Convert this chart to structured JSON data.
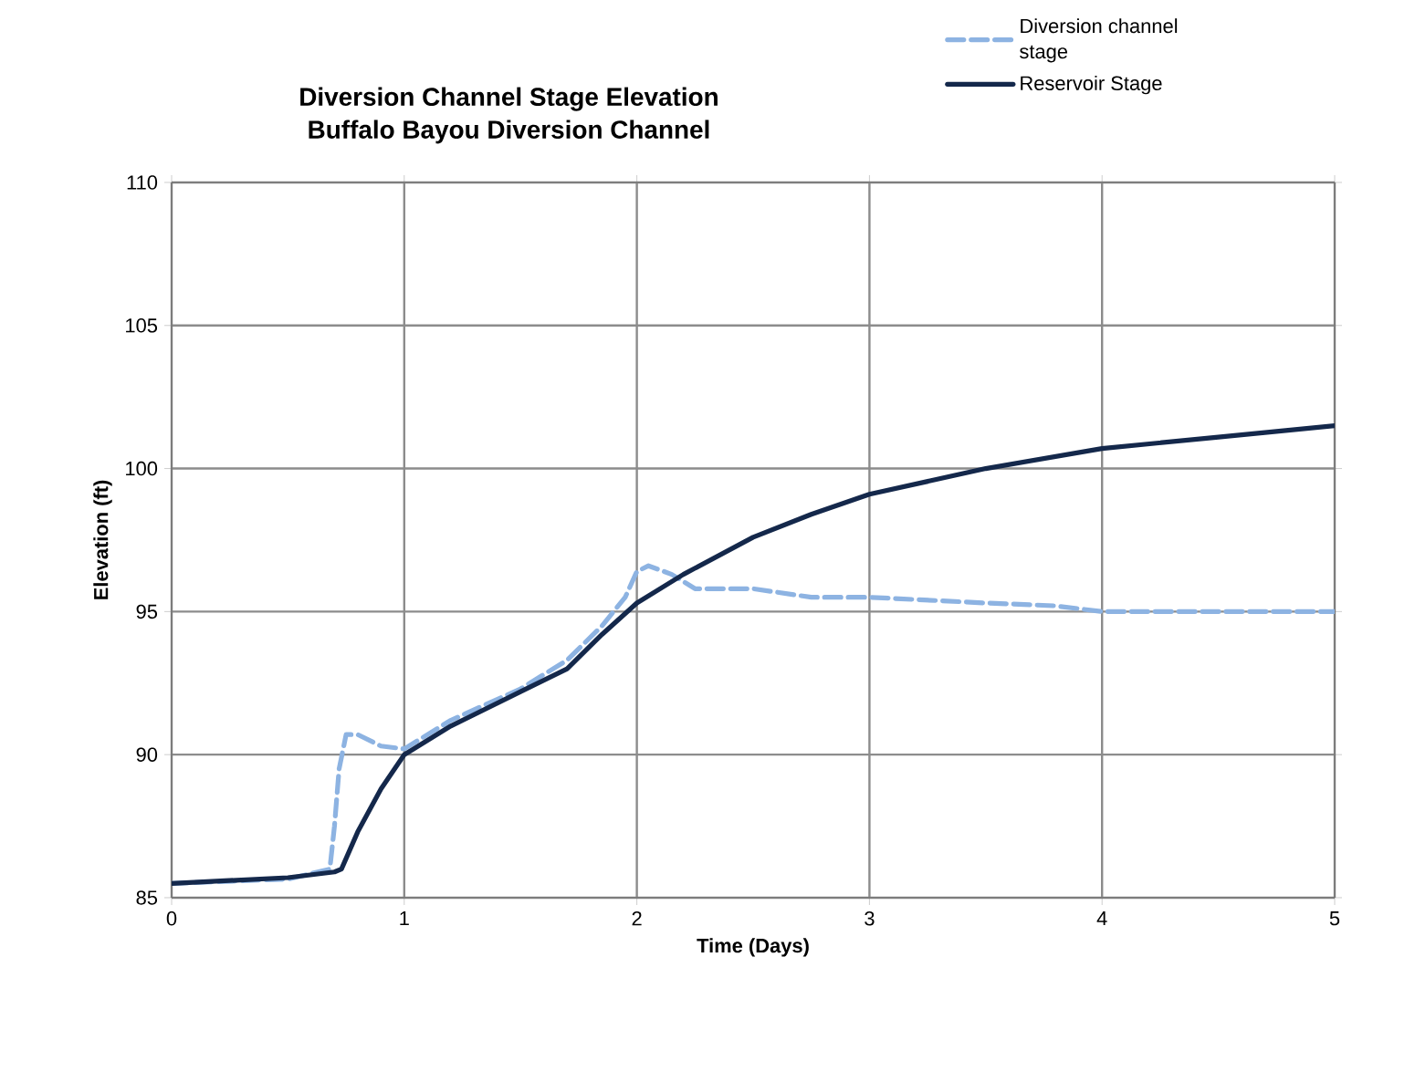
{
  "chart_data": {
    "type": "line",
    "title": "Diversion Channel Stage Elevation",
    "subtitle": "Buffalo Bayou Diversion Channel",
    "xlabel": "Time (Days)",
    "ylabel": "Elevation (ft)",
    "xlim": [
      0,
      5
    ],
    "xticks": [
      0,
      1,
      2,
      3,
      4,
      5
    ],
    "ylim": [
      85,
      110
    ],
    "yticks": [
      85,
      90,
      95,
      100,
      105,
      110
    ],
    "grid": true,
    "legend": "top right",
    "series": [
      {
        "name": "Diversion channel stage",
        "color": "#8db3e2",
        "line_style": "dashed",
        "x": [
          0,
          0.5,
          0.68,
          0.7,
          0.72,
          0.75,
          0.8,
          0.9,
          1.0,
          1.2,
          1.5,
          1.7,
          1.85,
          1.95,
          2.0,
          2.05,
          2.15,
          2.25,
          2.5,
          2.75,
          3.0,
          3.5,
          3.8,
          4.0,
          4.5,
          5.0
        ],
        "values": [
          85.5,
          85.65,
          86.0,
          87.5,
          89.5,
          90.7,
          90.7,
          90.3,
          90.2,
          91.2,
          92.3,
          93.3,
          94.5,
          95.5,
          96.4,
          96.6,
          96.3,
          95.8,
          95.8,
          95.5,
          95.5,
          95.3,
          95.2,
          95.0,
          95.0,
          95.0
        ]
      },
      {
        "name": "Reservoir Stage",
        "color": "#14284b",
        "line_style": "solid",
        "x": [
          0,
          0.5,
          0.7,
          0.73,
          0.8,
          0.9,
          1.0,
          1.2,
          1.5,
          1.7,
          1.85,
          2.0,
          2.2,
          2.5,
          2.75,
          3.0,
          3.5,
          4.0,
          4.5,
          5.0
        ],
        "values": [
          85.5,
          85.7,
          85.9,
          86.0,
          87.3,
          88.8,
          90.0,
          91.0,
          92.2,
          93.0,
          94.2,
          95.3,
          96.3,
          97.6,
          98.4,
          99.1,
          100.0,
          100.7,
          101.1,
          101.5
        ]
      }
    ]
  }
}
